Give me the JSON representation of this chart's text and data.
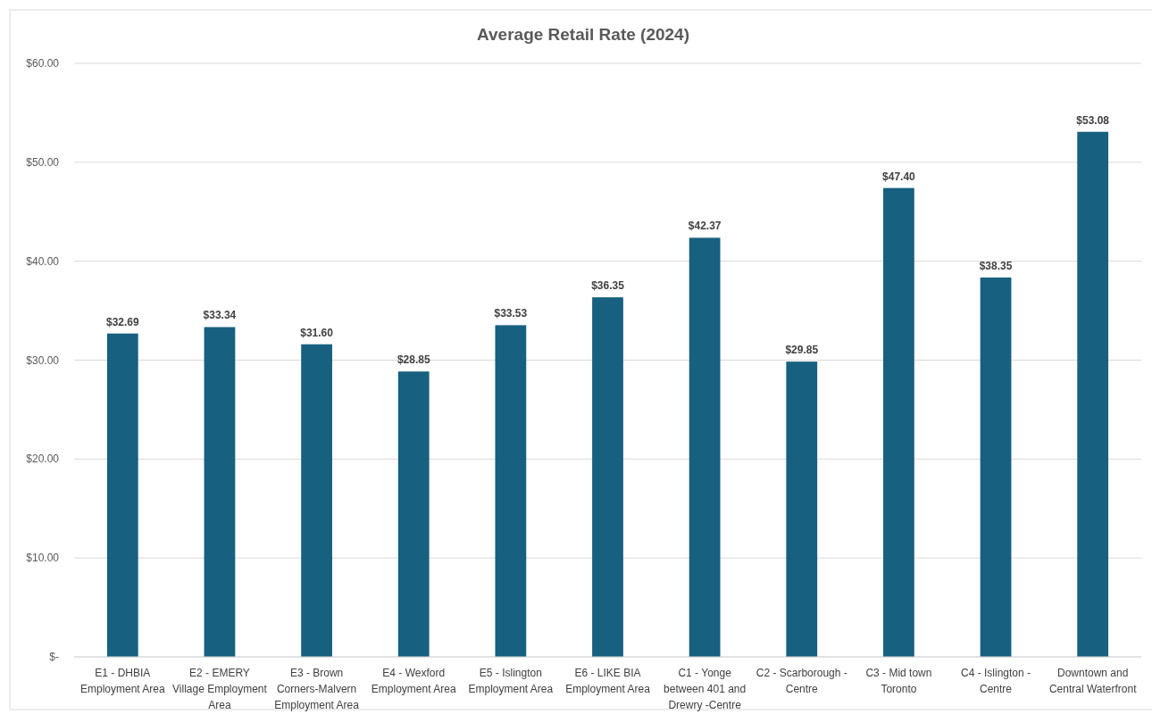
{
  "chart_data": {
    "type": "bar",
    "title": "Average Retail Rate (2024)",
    "categories": [
      "E1 - DHBIA Employment Area",
      "E2 - EMERY Village Employment Area",
      "E3 - Brown Corners-Malvern Employment Area",
      "E4 - Wexford Employment Area",
      "E5 - Islington Employment Area",
      "E6 - LIKE BIA Employment Area",
      "C1 - Yonge between 401 and Drewry -Centre",
      "C2 - Scarborough - Centre",
      "C3 - Mid town Toronto",
      "C4 - Islington - Centre",
      "Downtown and Central Waterfront"
    ],
    "values": [
      32.69,
      33.34,
      31.6,
      28.85,
      33.53,
      36.35,
      42.37,
      29.85,
      47.4,
      38.35,
      53.08
    ],
    "value_labels": [
      "$32.69",
      "$33.34",
      "$31.60",
      "$28.85",
      "$33.53",
      "$36.35",
      "$42.37",
      "$29.85",
      "$47.40",
      "$38.35",
      "$53.08"
    ],
    "color": "#17607f",
    "ylim": [
      0,
      60
    ],
    "yticks": [
      {
        "value": 0,
        "label": "$-"
      },
      {
        "value": 10,
        "label": "$10.00"
      },
      {
        "value": 20,
        "label": "$20.00"
      },
      {
        "value": 30,
        "label": "$30.00"
      },
      {
        "value": 40,
        "label": "$40.00"
      },
      {
        "value": 50,
        "label": "$50.00"
      },
      {
        "value": 60,
        "label": "$60.00"
      }
    ],
    "grid": "y"
  }
}
